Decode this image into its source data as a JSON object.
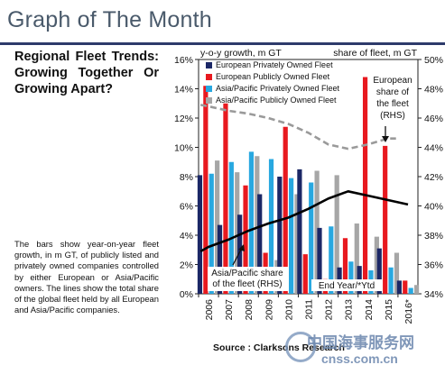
{
  "header": {
    "title": "Graph of The Month"
  },
  "subtitle_lines": [
    [
      "Regional",
      "Fleet",
      "Trends:"
    ],
    [
      "Growing",
      "Together",
      "Or"
    ],
    [
      "Growing Apart?"
    ]
  ],
  "caption": "The bars show year-on-year fleet growth, in m GT, of publicly listed and privately owned companies controlled by either European or Asia/Pacific owners. The lines show the total share of the global fleet held by all European and Asia/Pacific companies.",
  "source": "Source : Clarksons Research",
  "watermark": {
    "line1": "中国海事服务网",
    "line2": "cnss.com.cn"
  },
  "colors": {
    "eu_private": "#1b2766",
    "eu_public": "#e8191f",
    "ap_private": "#28a8e0",
    "ap_public": "#a6a6a6",
    "eu_share_line": "#9a9a9a",
    "ap_share_line": "#000000"
  },
  "chart_data": {
    "type": "bar",
    "categories": [
      "2006",
      "2007",
      "2008",
      "2009",
      "2010",
      "2011",
      "2012",
      "2013",
      "2014",
      "2015",
      "2016*"
    ],
    "ylabel_left": "y-o-y growth, m GT",
    "ylabel_right": "share of fleet, m GT",
    "ylim_left": [
      0,
      16
    ],
    "yticks_left": [
      "0%",
      "2%",
      "4%",
      "6%",
      "8%",
      "10%",
      "12%",
      "14%",
      "16%"
    ],
    "ylim_right": [
      34,
      50
    ],
    "yticks_right": [
      "34%",
      "36%",
      "38%",
      "40%",
      "42%",
      "44%",
      "46%",
      "48%",
      "50%"
    ],
    "grid": false,
    "legend_position": "top-left",
    "series": [
      {
        "name": "European Privately Owned Fleet",
        "type": "bar",
        "axis": "left",
        "color_key": "eu_private",
        "values": [
          8.1,
          4.7,
          5.4,
          6.8,
          8.0,
          8.5,
          4.5,
          1.8,
          1.9,
          3.1,
          0.9
        ]
      },
      {
        "name": "European Publicly Owned Fleet",
        "type": "bar",
        "axis": "left",
        "color_key": "eu_public",
        "values": [
          14.2,
          13.0,
          7.4,
          2.8,
          11.4,
          2.7,
          1.0,
          3.8,
          14.8,
          10.1,
          0.9
        ]
      },
      {
        "name": "Asia/Pacific Privately Owned Fleet",
        "type": "bar",
        "axis": "left",
        "color_key": "ap_private",
        "values": [
          8.2,
          9.0,
          9.7,
          9.2,
          7.9,
          7.6,
          4.6,
          2.2,
          1.6,
          1.8,
          0.4
        ]
      },
      {
        "name": "Asia/Pacific Publicly Owned Fleet",
        "type": "bar",
        "axis": "left",
        "color_key": "ap_public",
        "values": [
          9.1,
          8.3,
          9.4,
          2.3,
          6.8,
          8.4,
          8.1,
          4.8,
          3.9,
          2.8,
          0.6
        ]
      },
      {
        "name": "European share of the fleet (RHS)",
        "type": "line",
        "axis": "right",
        "color_key": "eu_share_line",
        "dashed": true,
        "x": [
          2005.6,
          2006,
          2007,
          2008,
          2009,
          2010,
          2011,
          2012,
          2013,
          2014,
          2015,
          2015.4
        ],
        "values": [
          46.9,
          46.8,
          46.5,
          46.3,
          46.0,
          45.6,
          45.0,
          44.2,
          43.9,
          44.2,
          44.6,
          44.6
        ]
      },
      {
        "name": "Asia/Pacific share of the fleet (RHS)",
        "type": "line",
        "axis": "right",
        "color_key": "ap_share_line",
        "dashed": false,
        "x": [
          2005.6,
          2006,
          2007,
          2008,
          2009,
          2010,
          2011,
          2012,
          2013,
          2014,
          2015,
          2016
        ],
        "values": [
          36.9,
          37.2,
          37.7,
          38.3,
          38.8,
          39.2,
          39.8,
          40.5,
          41.0,
          40.7,
          40.4,
          40.1
        ]
      }
    ],
    "annotations": {
      "eu_share_label": [
        "European",
        "share of",
        "the fleet",
        "(RHS)"
      ],
      "ap_share_label": [
        "Asia/Pacific share",
        "of the fleet (RHS)"
      ],
      "end_year_label": "End Year/*Ytd"
    }
  }
}
